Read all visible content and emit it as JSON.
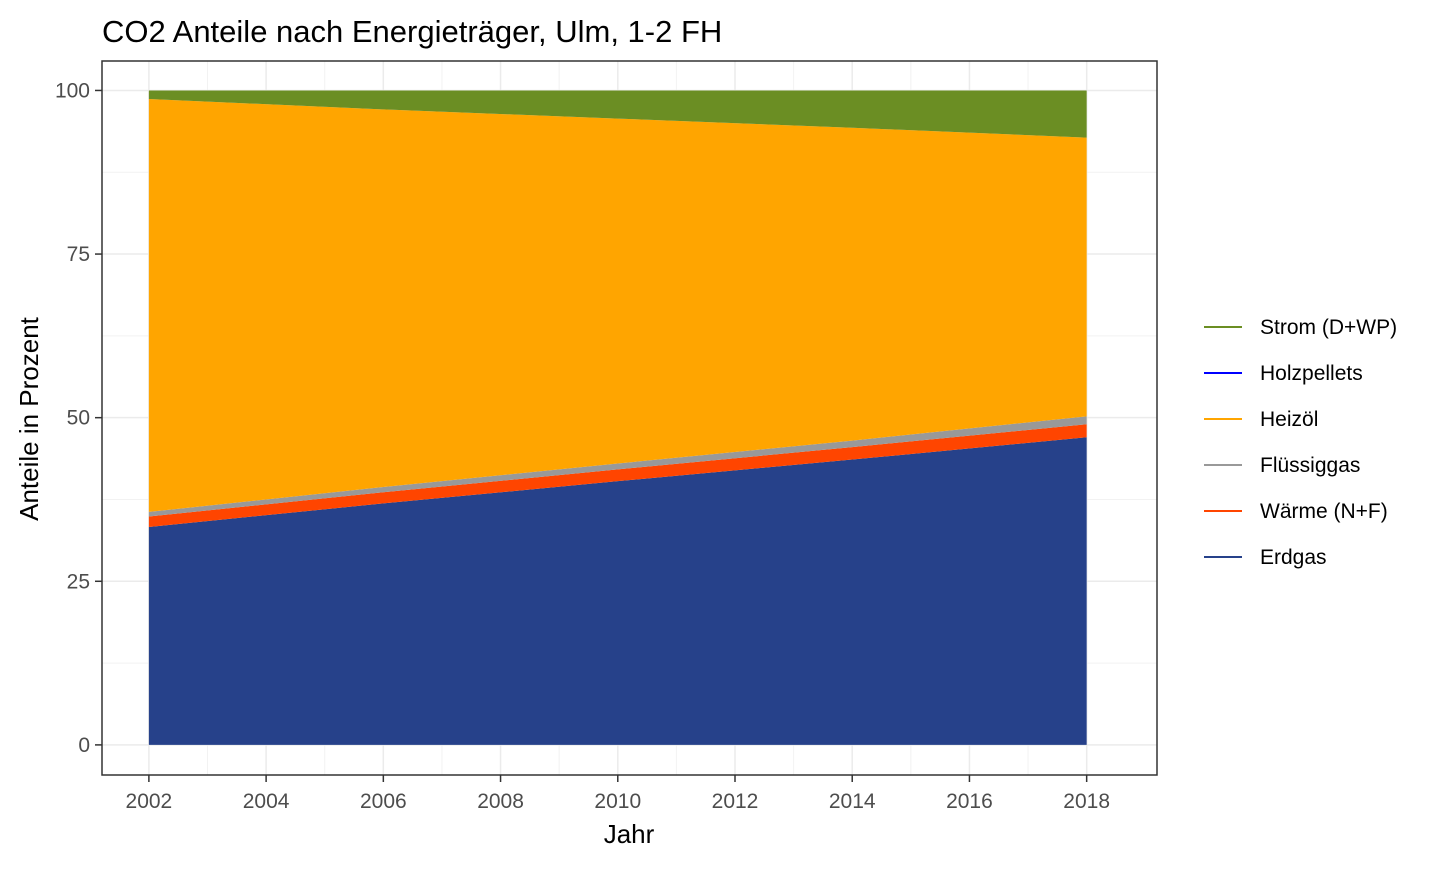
{
  "chart_data": {
    "type": "area",
    "stacked": true,
    "title": "CO2 Anteile nach Energieträger, Ulm, 1-2 FH",
    "xlabel": "Jahr",
    "ylabel": "Anteile in Prozent",
    "xlim": [
      2001.2,
      2019.2
    ],
    "ylim": [
      -4.6,
      104.5
    ],
    "x_ticks": [
      2002,
      2004,
      2006,
      2008,
      2010,
      2012,
      2014,
      2016,
      2018
    ],
    "y_ticks": [
      0,
      25,
      50,
      75,
      100
    ],
    "grid": true,
    "legend_position": "right",
    "x": [
      2002,
      2006,
      2010,
      2014,
      2018
    ],
    "series": [
      {
        "name": "Erdgas",
        "color": "#26418A",
        "values": [
          33.3,
          36.9,
          40.3,
          43.6,
          47.0
        ]
      },
      {
        "name": "Wärme (N+F)",
        "color": "#FF4500",
        "values": [
          1.6,
          1.7,
          1.8,
          1.9,
          2.0
        ]
      },
      {
        "name": "Flüssiggas",
        "color": "#999999",
        "values": [
          0.7,
          0.8,
          0.9,
          1.0,
          1.2
        ]
      },
      {
        "name": "Holzpellets",
        "color": "#0000FF",
        "values": [
          0.0,
          0.0,
          0.0,
          0.0,
          0.0
        ]
      },
      {
        "name": "Heizöl",
        "color": "#FFA500",
        "values": [
          63.1,
          57.7,
          52.7,
          47.8,
          42.6
        ]
      },
      {
        "name": "Strom (D+WP)",
        "color": "#6B8E23",
        "values": [
          1.3,
          2.9,
          4.3,
          5.7,
          7.2
        ]
      }
    ],
    "legend_order": [
      "Strom (D+WP)",
      "Holzpellets",
      "Heizöl",
      "Flüssiggas",
      "Wärme (N+F)",
      "Erdgas"
    ]
  }
}
